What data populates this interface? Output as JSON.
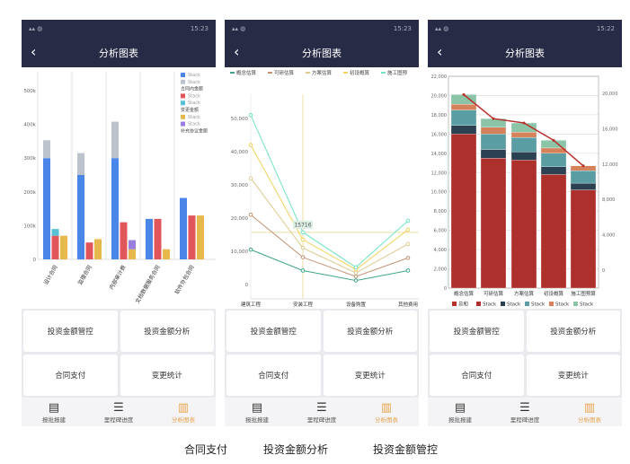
{
  "phones": [
    {
      "status_left": "signal wifi",
      "time": "15:23",
      "title": "分析图表"
    },
    {
      "status_left": "signal wifi",
      "time": "15:23",
      "title": "分析图表"
    },
    {
      "status_left": "signal wifi",
      "time": "15:22",
      "title": "分析图表"
    }
  ],
  "buttons": [
    "投资金额管控",
    "投资金额分析",
    "合同支付",
    "变更统计"
  ],
  "nav": [
    {
      "label": "报批报建",
      "icon": "document-user-icon"
    },
    {
      "label": "里程碑进度",
      "icon": "sliders-icon"
    },
    {
      "label": "分析图表",
      "icon": "bar-chart-icon",
      "active": true
    }
  ],
  "captions": [
    "合同支付",
    "投资金额分析",
    "投资金额管控"
  ],
  "colors": {
    "header": "#272b45",
    "active": "#e8a24a"
  },
  "chart_data": [
    {
      "type": "bar",
      "categories": [
        "设计合同",
        "监理合同",
        "内部审计费",
        "文档数据服务合同",
        "软件外包合同"
      ],
      "ylim": [
        0,
        500000
      ],
      "yticks": [
        "0",
        "100k",
        "200k",
        "300k",
        "400k",
        "500k"
      ],
      "legend": [
        "Stack",
        "Stack",
        "合同内金额",
        "Stack",
        "Stack",
        "变更金额",
        "Stack",
        "Stack",
        "补充协议金额"
      ],
      "series": [
        {
          "stack": "合同内金额",
          "color": "#4a86e8",
          "values": [
            300000,
            250000,
            300000,
            120000,
            182000
          ]
        },
        {
          "stack": "合同内金额",
          "color": "#bcc3cc",
          "values": [
            53000,
            65000,
            108000,
            0,
            0
          ]
        },
        {
          "stack": "变更金额",
          "color": "#e0565b",
          "values": [
            70000,
            50000,
            110000,
            120000,
            130000
          ]
        },
        {
          "stack": "变更金额",
          "color": "#56c0d4",
          "values": [
            20000,
            0,
            0,
            0,
            0
          ]
        },
        {
          "stack": "补充协议金额",
          "color": "#e6b84e",
          "values": [
            70000,
            60000,
            30000,
            30000,
            130000
          ]
        },
        {
          "stack": "补充协议金额",
          "color": "#9b7fe0",
          "values": [
            0,
            0,
            27000,
            0,
            0
          ]
        }
      ]
    },
    {
      "type": "line",
      "categories": [
        "建筑工程",
        "安装工程",
        "设备购置",
        "其他费用"
      ],
      "ylim": [
        0,
        55000
      ],
      "yticks": [
        "0",
        "10,000",
        "20,000",
        "30,000",
        "40,000",
        "50,000"
      ],
      "tooltip": "15716",
      "series": [
        {
          "name": "概念估算",
          "color": "#3fa58a",
          "values": [
            10500,
            4200,
            1200,
            4200
          ]
        },
        {
          "name": "可研估算",
          "color": "#c29474",
          "values": [
            21000,
            8200,
            2400,
            8000
          ]
        },
        {
          "name": "方案估算",
          "color": "#dccb8e",
          "values": [
            32000,
            11000,
            3500,
            12200
          ]
        },
        {
          "name": "初设概算",
          "color": "#f0d35c",
          "values": [
            42000,
            13500,
            4500,
            16500
          ]
        },
        {
          "name": "施工图预",
          "color": "#6fe3c4",
          "values": [
            51000,
            15716,
            5200,
            19200
          ]
        }
      ]
    },
    {
      "type": "bar",
      "categories": [
        "概念估算",
        "可研估算",
        "方案估算",
        "初设概算",
        "施工图预算"
      ],
      "ylim": [
        0,
        22000
      ],
      "yticks": [
        "0",
        "2,000",
        "4,000",
        "6,000",
        "8,000",
        "10,000",
        "12,000",
        "14,000",
        "16,000",
        "18,000",
        "20,000",
        "22,000"
      ],
      "y2ticks": [
        "0",
        "4,000",
        "8,000",
        "12,000",
        "16,000",
        "20,000"
      ],
      "legend": [
        "总和",
        "Stack",
        "Stack",
        "Stack",
        "Stack",
        "Stack"
      ],
      "line": {
        "name": "总和",
        "color": "#b8302c",
        "values": [
          20100,
          17600,
          17150,
          15350,
          12700
        ]
      },
      "series": [
        {
          "name": "Stack",
          "color": "#ad302c",
          "values": [
            16000,
            13500,
            13300,
            11800,
            10200
          ]
        },
        {
          "name": "Stack",
          "color": "#2b4050",
          "values": [
            900,
            900,
            850,
            800,
            700
          ]
        },
        {
          "name": "Stack",
          "color": "#5a9ea3",
          "values": [
            1600,
            1600,
            1500,
            1400,
            1300
          ]
        },
        {
          "name": "Stack",
          "color": "#d5825c",
          "values": [
            600,
            700,
            550,
            550,
            500
          ]
        },
        {
          "name": "Stack",
          "color": "#8cc4a8",
          "values": [
            1000,
            900,
            950,
            800,
            0
          ]
        }
      ]
    }
  ]
}
